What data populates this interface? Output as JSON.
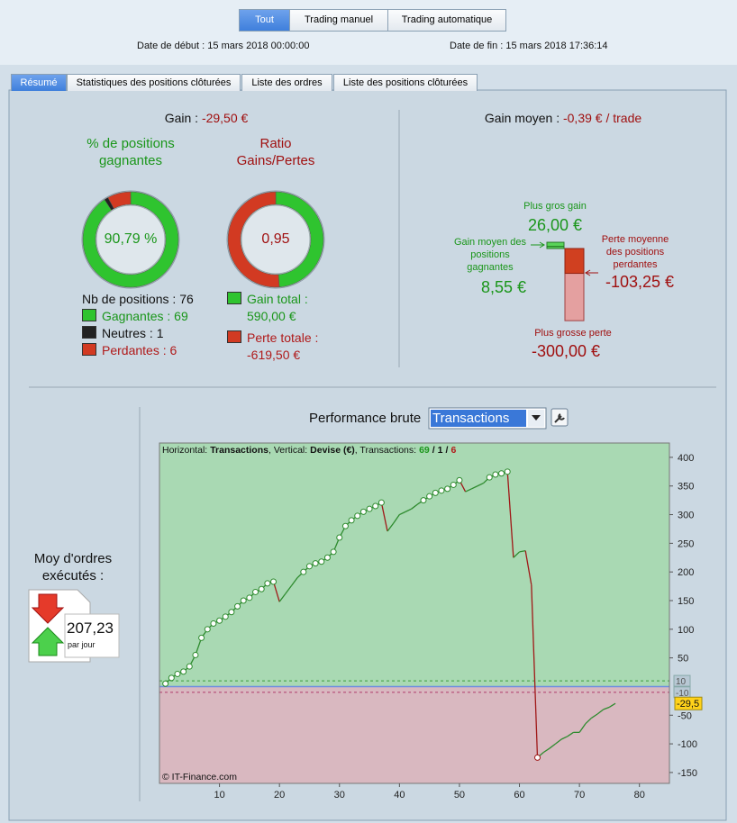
{
  "filters": [
    "Tout",
    "Trading manuel",
    "Trading automatique"
  ],
  "dates": {
    "start_label": "Date de début :",
    "start": "15 mars 2018 00:00:00",
    "end_label": "Date de fin :",
    "end": "15 mars 2018 17:36:14"
  },
  "tabs": [
    "Résumé",
    "Statistiques des positions clôturées",
    "Liste des ordres",
    "Liste des positions clôturées"
  ],
  "summary": {
    "gain_label": "Gain :",
    "gain": {
      "value": -29.5,
      "label": "-29,50 €"
    },
    "win_title": "% de positions gagnantes",
    "win_rate": {
      "value": 90.79,
      "label": "90,79 %"
    },
    "ratio_title": "Ratio Gains/Pertes",
    "ratio": {
      "value": 0.95,
      "label": "0,95"
    },
    "positions_label": "Nb de positions :",
    "positions": 76,
    "counts": [
      {
        "name": "Gagnantes :",
        "value": 69,
        "color": "#2fc42f",
        "text_color": "#1a961a"
      },
      {
        "name": "Neutres :",
        "value": 1,
        "color": "#222222",
        "text_color": "#111111"
      },
      {
        "name": "Perdantes :",
        "value": 6,
        "color": "#d23a22",
        "text_color": "#b01a1a"
      }
    ],
    "totals": [
      {
        "name": "Gain total :",
        "value": 590,
        "label": "590,00 €",
        "color": "#2fc42f",
        "text_color": "#1a961a"
      },
      {
        "name": "Perte totale :",
        "value": -619.5,
        "label": "-619,50 €",
        "color": "#d23a22",
        "text_color": "#b01a1a"
      }
    ]
  },
  "averages": {
    "avg_label": "Gain moyen :",
    "avg": {
      "value": -0.39,
      "label": "-0,39 € / trade"
    },
    "max_gain_label": "Plus gros gain",
    "max_gain": {
      "value": 26,
      "label": "26,00 €"
    },
    "avg_gain_label": "Gain moyen des positions gagnantes",
    "avg_gain": {
      "value": 8.55,
      "label": "8,55 €"
    },
    "avg_loss_label": "Perte moyenne des positions perdantes",
    "avg_loss": {
      "value": -103.25,
      "label": "-103,25 €"
    },
    "max_loss_label": "Plus grosse perte",
    "max_loss": {
      "value": -300,
      "label": "-300,00 €"
    }
  },
  "orders": {
    "label": "Moy d'ordres exécutés :",
    "value": {
      "value": 207.23,
      "label": "207,23"
    },
    "unit": "par jour"
  },
  "chart_data": {
    "type": "line",
    "title": "Performance brute",
    "selector": "Transactions",
    "header": {
      "horizontal_label": "Horizontal:",
      "horizontal": "Transactions",
      "vertical_label": ", Vertical:",
      "vertical": "Devise (€)",
      "count_label": ", Transactions:",
      "separator": "/"
    },
    "annotation": "© IT-Finance.com",
    "x": [
      1,
      2,
      3,
      4,
      5,
      6,
      7,
      8,
      9,
      10,
      11,
      12,
      13,
      14,
      15,
      16,
      17,
      18,
      19,
      20,
      21,
      22,
      23,
      24,
      25,
      26,
      27,
      28,
      29,
      30,
      31,
      32,
      33,
      34,
      35,
      36,
      37,
      38,
      39,
      40,
      41,
      42,
      43,
      44,
      45,
      46,
      47,
      48,
      49,
      50,
      51,
      52,
      53,
      54,
      55,
      56,
      57,
      58,
      59,
      60,
      61,
      62,
      63,
      64,
      65,
      66,
      67,
      68,
      69,
      70,
      71,
      72,
      73,
      74,
      75,
      76
    ],
    "series": [
      {
        "color": "#2e8b2e",
        "down_color": "#a01818",
        "values": [
          5,
          15,
          22,
          26,
          35,
          55,
          85,
          100,
          110,
          115,
          122,
          130,
          140,
          150,
          155,
          165,
          170,
          180,
          183,
          148,
          162,
          176,
          190,
          200,
          210,
          215,
          218,
          225,
          235,
          260,
          280,
          290,
          298,
          305,
          310,
          315,
          321,
          271,
          285,
          300,
          305,
          310,
          318,
          325,
          332,
          338,
          342,
          345,
          352,
          360,
          340,
          345,
          350,
          355,
          365,
          370,
          372,
          375,
          225,
          235,
          237,
          177,
          -124,
          -115,
          -108,
          -100,
          -92,
          -87,
          -80,
          -80,
          -65,
          -55,
          -48,
          -40,
          -36,
          -29.5
        ],
        "markers": [
          true,
          true,
          true,
          true,
          true,
          true,
          true,
          true,
          true,
          true,
          true,
          true,
          true,
          true,
          true,
          true,
          true,
          true,
          true,
          false,
          false,
          false,
          false,
          true,
          true,
          true,
          true,
          true,
          true,
          true,
          true,
          true,
          true,
          true,
          true,
          true,
          true,
          false,
          false,
          false,
          false,
          false,
          false,
          true,
          true,
          true,
          true,
          true,
          true,
          true,
          false,
          false,
          false,
          false,
          true,
          true,
          true,
          true,
          false,
          false,
          false,
          false,
          true,
          false,
          false,
          false,
          false,
          false,
          false,
          false,
          false,
          false,
          false,
          false,
          false,
          false
        ]
      }
    ],
    "xlim": [
      0,
      85
    ],
    "xticks": [
      10,
      20,
      30,
      40,
      50,
      60,
      70,
      80
    ],
    "ylim": [
      -169,
      425
    ],
    "yticks": [
      400,
      350,
      300,
      250,
      200,
      150,
      100,
      50,
      -50,
      -100,
      -150
    ],
    "ref_lines": [
      {
        "value": 10,
        "color": "#3a9a3a"
      },
      {
        "value": -10,
        "color": "#b03a6a"
      }
    ],
    "last": {
      "value": -29.5,
      "label": "-29,5"
    },
    "above_color": "#a9d9b3",
    "below_color": "#d9b8c0",
    "zero_color": "#6f8fe0"
  }
}
